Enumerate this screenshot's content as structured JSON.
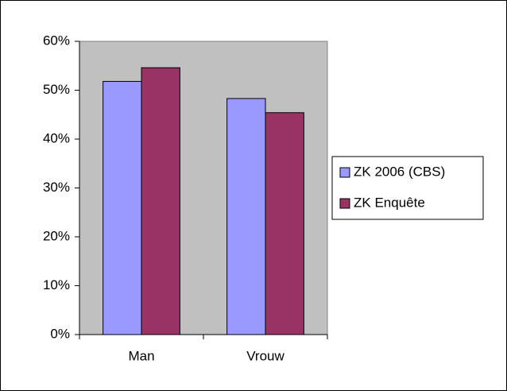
{
  "chart_data": {
    "type": "bar",
    "categories": [
      "Man",
      "Vrouw"
    ],
    "series": [
      {
        "name": "ZK 2006 (CBS)",
        "color": "#9999ff",
        "values": [
          51.8,
          48.3
        ]
      },
      {
        "name": "ZK Enquête",
        "color": "#993366",
        "values": [
          54.6,
          45.4
        ]
      }
    ],
    "ylim": [
      0,
      60
    ],
    "yticks": [
      {
        "value": 0,
        "label": "0%"
      },
      {
        "value": 10,
        "label": "10%"
      },
      {
        "value": 20,
        "label": "20%"
      },
      {
        "value": 30,
        "label": "30%"
      },
      {
        "value": 40,
        "label": "40%"
      },
      {
        "value": 50,
        "label": "50%"
      },
      {
        "value": 60,
        "label": "60%"
      }
    ],
    "plot_background": "#c0c0c0",
    "legend": "right"
  }
}
